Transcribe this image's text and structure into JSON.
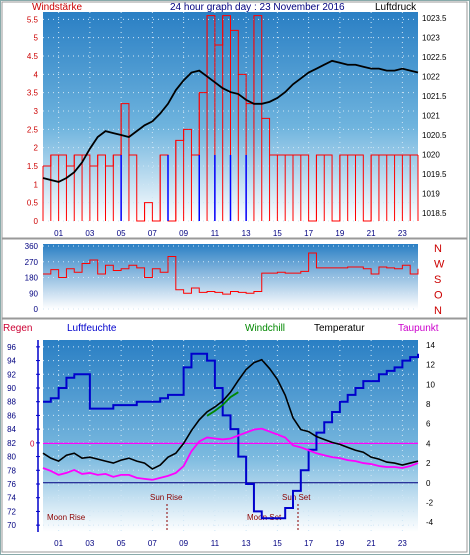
{
  "header": {
    "left_label": "Windstärke",
    "title": "24 hour graph day : 23 November 2016",
    "right_label": "Luftdruck"
  },
  "colors": {
    "wind": "#ff0000",
    "gust_blue": "#0000ff",
    "pressure": "#000000",
    "direction": "#ff0000",
    "humidity": "#0000cc",
    "windchill": "#008800",
    "temperature": "#000000",
    "dewpoint": "#ff00ff",
    "rain": "#cc0033",
    "axis_text_blue": "#000080",
    "axis_text_red": "#cc0000"
  },
  "chart_data": [
    {
      "id": "wind-pressure",
      "type": "line",
      "title": "24 hour graph day : 23 November 2016",
      "xlabel": "",
      "x_ticks": [
        "01",
        "03",
        "05",
        "07",
        "09",
        "11",
        "13",
        "15",
        "17",
        "19",
        "21",
        "23"
      ],
      "y_left_label": "Windstärke",
      "y_left_ticks": [
        "0",
        "0.5",
        "1",
        "1.5",
        "2",
        "2.5",
        "3",
        "3.5",
        "4",
        "4.5",
        "5",
        "5.5"
      ],
      "ylim_left": [
        0,
        5.7
      ],
      "y_right_label": "Luftdruck",
      "y_right_ticks": [
        "1018.5",
        "1019",
        "1019.5",
        "1020",
        "1020.5",
        "1021",
        "1021.5",
        "1022",
        "1022.5",
        "1023",
        "1023.5"
      ],
      "ylim_right": [
        1018.3,
        1023.65
      ],
      "series": [
        {
          "name": "Luftdruck",
          "axis": "right",
          "x": [
            0,
            0.5,
            1,
            1.5,
            2,
            2.5,
            3,
            3.5,
            4,
            4.5,
            5,
            5.5,
            6,
            6.5,
            7,
            7.5,
            8,
            8.5,
            9,
            9.5,
            10,
            10.5,
            11,
            11.5,
            12,
            12.5,
            13,
            13.5,
            14,
            14.5,
            15,
            15.5,
            16,
            16.5,
            17,
            17.5,
            18,
            18.5,
            19,
            19.5,
            20,
            20.5,
            21,
            21.5,
            22,
            22.5,
            23,
            23.5,
            24
          ],
          "values": [
            1019.4,
            1019.35,
            1019.3,
            1019.4,
            1019.55,
            1019.8,
            1020.15,
            1020.45,
            1020.6,
            1020.55,
            1020.5,
            1020.45,
            1020.6,
            1020.75,
            1020.85,
            1021.05,
            1021.3,
            1021.65,
            1021.9,
            1022.1,
            1022.15,
            1022.0,
            1021.85,
            1021.7,
            1021.6,
            1021.55,
            1021.4,
            1021.3,
            1021.3,
            1021.35,
            1021.45,
            1021.6,
            1021.8,
            1021.95,
            1022.1,
            1022.2,
            1022.3,
            1022.4,
            1022.35,
            1022.3,
            1022.3,
            1022.25,
            1022.2,
            1022.2,
            1022.15,
            1022.15,
            1022.2,
            1022.15,
            1022.1
          ]
        },
        {
          "name": "Windstärke",
          "axis": "left",
          "x": [
            0,
            0.5,
            1,
            1.5,
            2,
            2.5,
            3,
            3.5,
            4,
            4.5,
            5,
            5.5,
            6,
            6.5,
            7,
            7.5,
            8,
            8.5,
            9,
            9.5,
            10,
            10.5,
            11,
            11.5,
            12,
            12.5,
            13,
            13.5,
            14,
            14.5,
            15,
            15.5,
            16,
            16.5,
            17,
            17.5,
            18,
            18.5,
            19,
            19.5,
            20,
            20.5,
            21,
            21.5,
            22,
            22.5,
            23,
            23.5,
            24
          ],
          "values": [
            1.5,
            1.8,
            1.8,
            1.5,
            1.8,
            1.8,
            1.5,
            1.8,
            1.5,
            1.8,
            3.2,
            1.8,
            0,
            0.5,
            0,
            1.8,
            0,
            2.2,
            2.5,
            1.8,
            3.5,
            5.6,
            4.8,
            5.6,
            5.2,
            4.0,
            3.2,
            5.6,
            2.8,
            1.8,
            1.8,
            1.8,
            1.8,
            1.8,
            0,
            1.8,
            1.8,
            0,
            1.8,
            1.8,
            1.8,
            0,
            1.8,
            1.8,
            1.8,
            1.8,
            1.8,
            1.8,
            1.8
          ]
        },
        {
          "name": "Windrichtung (blau)",
          "axis": "left",
          "x": [
            5,
            8,
            10,
            11,
            12,
            13
          ],
          "values": [
            1.8,
            0,
            1.8,
            1.8,
            1.8,
            1.8
          ]
        }
      ]
    },
    {
      "id": "wind-direction",
      "type": "line",
      "xlabel": "",
      "y_ticks": [
        "360",
        "270",
        "180",
        "90",
        "0"
      ],
      "ylim": [
        0,
        360
      ],
      "direction_labels": [
        "N",
        "W",
        "S",
        "O",
        "N"
      ],
      "series": [
        {
          "name": "Windrichtung",
          "x": [
            0,
            0.5,
            1,
            1.5,
            2,
            2.5,
            3,
            3.5,
            4,
            4.5,
            5,
            5.5,
            6,
            6.5,
            7,
            7.5,
            8,
            8.5,
            9,
            9.5,
            10,
            10.5,
            11,
            11.5,
            12,
            12.5,
            13,
            13.5,
            14,
            14.5,
            15,
            15.5,
            16,
            16.5,
            17,
            17.5,
            18,
            18.5,
            19,
            19.5,
            20,
            20.5,
            21,
            21.5,
            22,
            22.5,
            23,
            23.5,
            24
          ],
          "values": [
            200,
            225,
            180,
            230,
            210,
            260,
            280,
            200,
            250,
            220,
            230,
            250,
            235,
            180,
            230,
            210,
            300,
            110,
            90,
            120,
            95,
            100,
            95,
            85,
            100,
            95,
            90,
            100,
            205,
            205,
            210,
            205,
            205,
            215,
            320,
            235,
            235,
            235,
            235,
            240,
            240,
            230,
            200,
            240,
            235,
            230,
            250,
            200,
            230
          ]
        }
      ]
    },
    {
      "id": "humidity-temperature",
      "type": "line",
      "legend": [
        "Regen",
        "Luftfeuchte",
        "Windchill",
        "Temperatur",
        "Taupunkt"
      ],
      "y_left_ticks": [
        "96",
        "94",
        "92",
        "90",
        "88",
        "86",
        "84",
        "82",
        "80",
        "78",
        "76",
        "74",
        "72",
        "70"
      ],
      "ylim_left": [
        69,
        97
      ],
      "y_right_ticks": [
        "14",
        "12",
        "10",
        "8",
        "6",
        "4",
        "2",
        "0",
        "-2",
        "-4"
      ],
      "ylim_right": [
        -5,
        14.5
      ],
      "rain_marker": "0",
      "annotations": [
        "Moon Rise",
        "Sun Rise",
        "Moon Set",
        "Sun Set"
      ],
      "series": [
        {
          "name": "Luftfeuchte",
          "axis": "left",
          "x": [
            0,
            0.5,
            1,
            1.5,
            2,
            2.5,
            3,
            3.5,
            4,
            4.5,
            5,
            5.5,
            6,
            6.5,
            7,
            7.5,
            8,
            8.5,
            9,
            9.5,
            10,
            10.5,
            11,
            11.5,
            12,
            12.5,
            13,
            13.5,
            14,
            14.5,
            15,
            15.5,
            16,
            16.5,
            17,
            17.5,
            18,
            18.5,
            19,
            19.5,
            20,
            20.5,
            21,
            21.5,
            22,
            22.5,
            23,
            23.5,
            24
          ],
          "values": [
            88,
            88.5,
            90,
            91.5,
            92,
            92,
            87,
            87,
            87,
            87.5,
            87.5,
            87.5,
            88,
            88,
            88,
            88.5,
            89,
            89,
            93,
            95,
            95,
            94,
            90,
            86,
            84,
            80,
            76,
            72,
            71,
            71,
            71,
            72.5,
            75,
            78,
            81,
            83.5,
            85,
            86.5,
            88,
            89,
            90,
            91,
            91,
            92,
            92.5,
            93,
            94,
            94.5,
            95
          ]
        },
        {
          "name": "Temperatur",
          "axis": "right",
          "x": [
            0,
            0.5,
            1,
            1.5,
            2,
            2.5,
            3,
            3.5,
            4,
            4.5,
            5,
            5.5,
            6,
            6.5,
            7,
            7.5,
            8,
            8.5,
            9,
            9.5,
            10,
            10.5,
            11,
            11.5,
            12,
            12.5,
            13,
            13.5,
            14,
            14.5,
            15,
            15.5,
            16,
            16.5,
            17,
            17.5,
            18,
            18.5,
            19,
            19.5,
            20,
            20.5,
            21,
            21.5,
            22,
            22.5,
            23,
            23.5,
            24
          ],
          "values": [
            3.0,
            2.5,
            2.2,
            2.8,
            3.0,
            2.5,
            2.6,
            2.4,
            2.2,
            2.0,
            2.3,
            2.5,
            2.2,
            2.0,
            1.4,
            1.8,
            2.6,
            3.0,
            4.0,
            5.3,
            6.4,
            7.2,
            7.7,
            8.3,
            9.2,
            10.4,
            11.5,
            12.2,
            12.5,
            11.6,
            10.5,
            8.9,
            6.6,
            5.4,
            5.2,
            4.7,
            4.4,
            4.1,
            3.9,
            3.6,
            3.3,
            3.1,
            2.6,
            2.4,
            2.1,
            2.0,
            1.8,
            2.0,
            2.2
          ]
        },
        {
          "name": "Windchill",
          "axis": "right",
          "x": [
            10.5,
            11,
            11.5,
            12,
            12.5
          ],
          "values": [
            6.8,
            7.3,
            7.9,
            8.7,
            9.2
          ]
        },
        {
          "name": "Taupunkt",
          "axis": "right",
          "x": [
            0,
            0.5,
            1,
            1.5,
            2,
            2.5,
            3,
            3.5,
            4,
            4.5,
            5,
            5.5,
            6,
            6.5,
            7,
            7.5,
            8,
            8.5,
            9,
            9.5,
            10,
            10.5,
            11,
            11.5,
            12,
            12.5,
            13,
            13.5,
            14,
            14.5,
            15,
            15.5,
            16,
            16.5,
            17,
            17.5,
            18,
            18.5,
            19,
            19.5,
            20,
            20.5,
            21,
            21.5,
            22,
            22.5,
            23,
            23.5,
            24
          ],
          "values": [
            1.5,
            1.2,
            0.8,
            1.0,
            1.3,
            0.9,
            1.0,
            0.8,
            0.9,
            0.6,
            0.8,
            0.8,
            0.5,
            0.4,
            0.3,
            0.5,
            0.7,
            1.0,
            1.7,
            3.2,
            4.2,
            4.6,
            4.5,
            4.4,
            4.5,
            4.8,
            5.1,
            5.4,
            5.5,
            5.2,
            4.9,
            4.6,
            3.8,
            3.6,
            3.3,
            3.0,
            2.8,
            2.6,
            2.5,
            2.3,
            2.2,
            2.0,
            1.9,
            1.7,
            1.6,
            1.6,
            1.5,
            1.7,
            2.0
          ]
        }
      ]
    }
  ]
}
